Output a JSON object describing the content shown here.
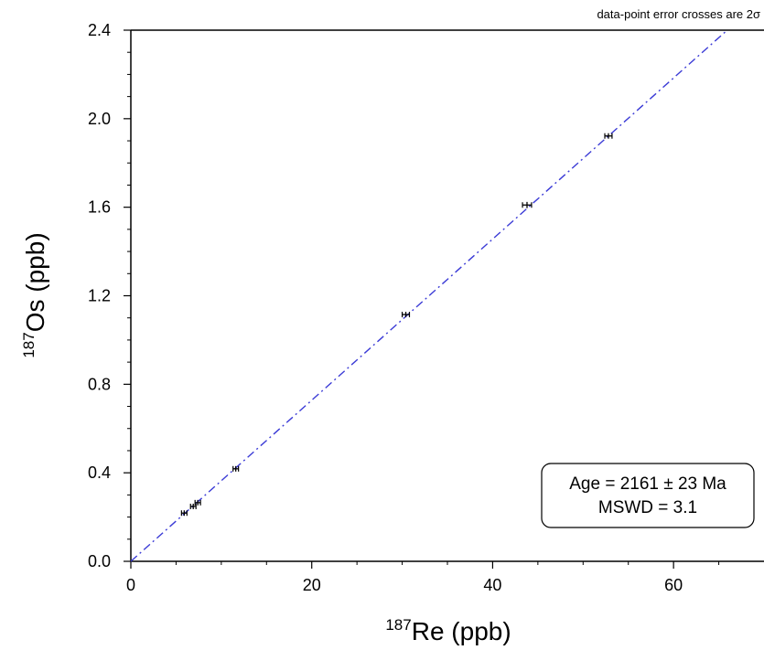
{
  "chart_data": {
    "type": "scatter",
    "title": "",
    "xlabel": {
      "sup": "187",
      "text": "Re (ppb)"
    },
    "ylabel": {
      "sup": "187",
      "text": "Os (ppb)"
    },
    "xlim": [
      0,
      70
    ],
    "ylim": [
      0,
      2.4
    ],
    "x_ticks": [
      0,
      20,
      40,
      60
    ],
    "y_ticks": [
      0.0,
      0.4,
      0.8,
      1.2,
      1.6,
      2.0,
      2.4
    ],
    "x_tick_labels": [
      "0",
      "20",
      "40",
      "60"
    ],
    "y_tick_labels": [
      "0.0",
      "0.4",
      "0.8",
      "1.2",
      "1.6",
      "2.0",
      "2.4"
    ],
    "note": "data-point error crosses are 2σ",
    "points": [
      {
        "x": 5.9,
        "y": 0.218,
        "xerr": 0.3,
        "yerr": 0.006
      },
      {
        "x": 6.9,
        "y": 0.248,
        "xerr": 0.3,
        "yerr": 0.006
      },
      {
        "x": 7.4,
        "y": 0.265,
        "xerr": 0.3,
        "yerr": 0.006
      },
      {
        "x": 11.6,
        "y": 0.418,
        "xerr": 0.3,
        "yerr": 0.008
      },
      {
        "x": 30.4,
        "y": 1.115,
        "xerr": 0.4,
        "yerr": 0.01
      },
      {
        "x": 43.8,
        "y": 1.61,
        "xerr": 0.5,
        "yerr": 0.014
      },
      {
        "x": 52.8,
        "y": 1.922,
        "xerr": 0.4,
        "yerr": 0.012
      }
    ],
    "fit_line": {
      "x0": 0,
      "y0": 0,
      "slope": 0.0364,
      "color": "#3b3bd6",
      "style": "dash-dot"
    },
    "annotation": {
      "line1": "Age = 2161 ± 23 Ma",
      "line2": "MSWD = 3.1",
      "placement": "bottom-right"
    },
    "grid": false
  }
}
